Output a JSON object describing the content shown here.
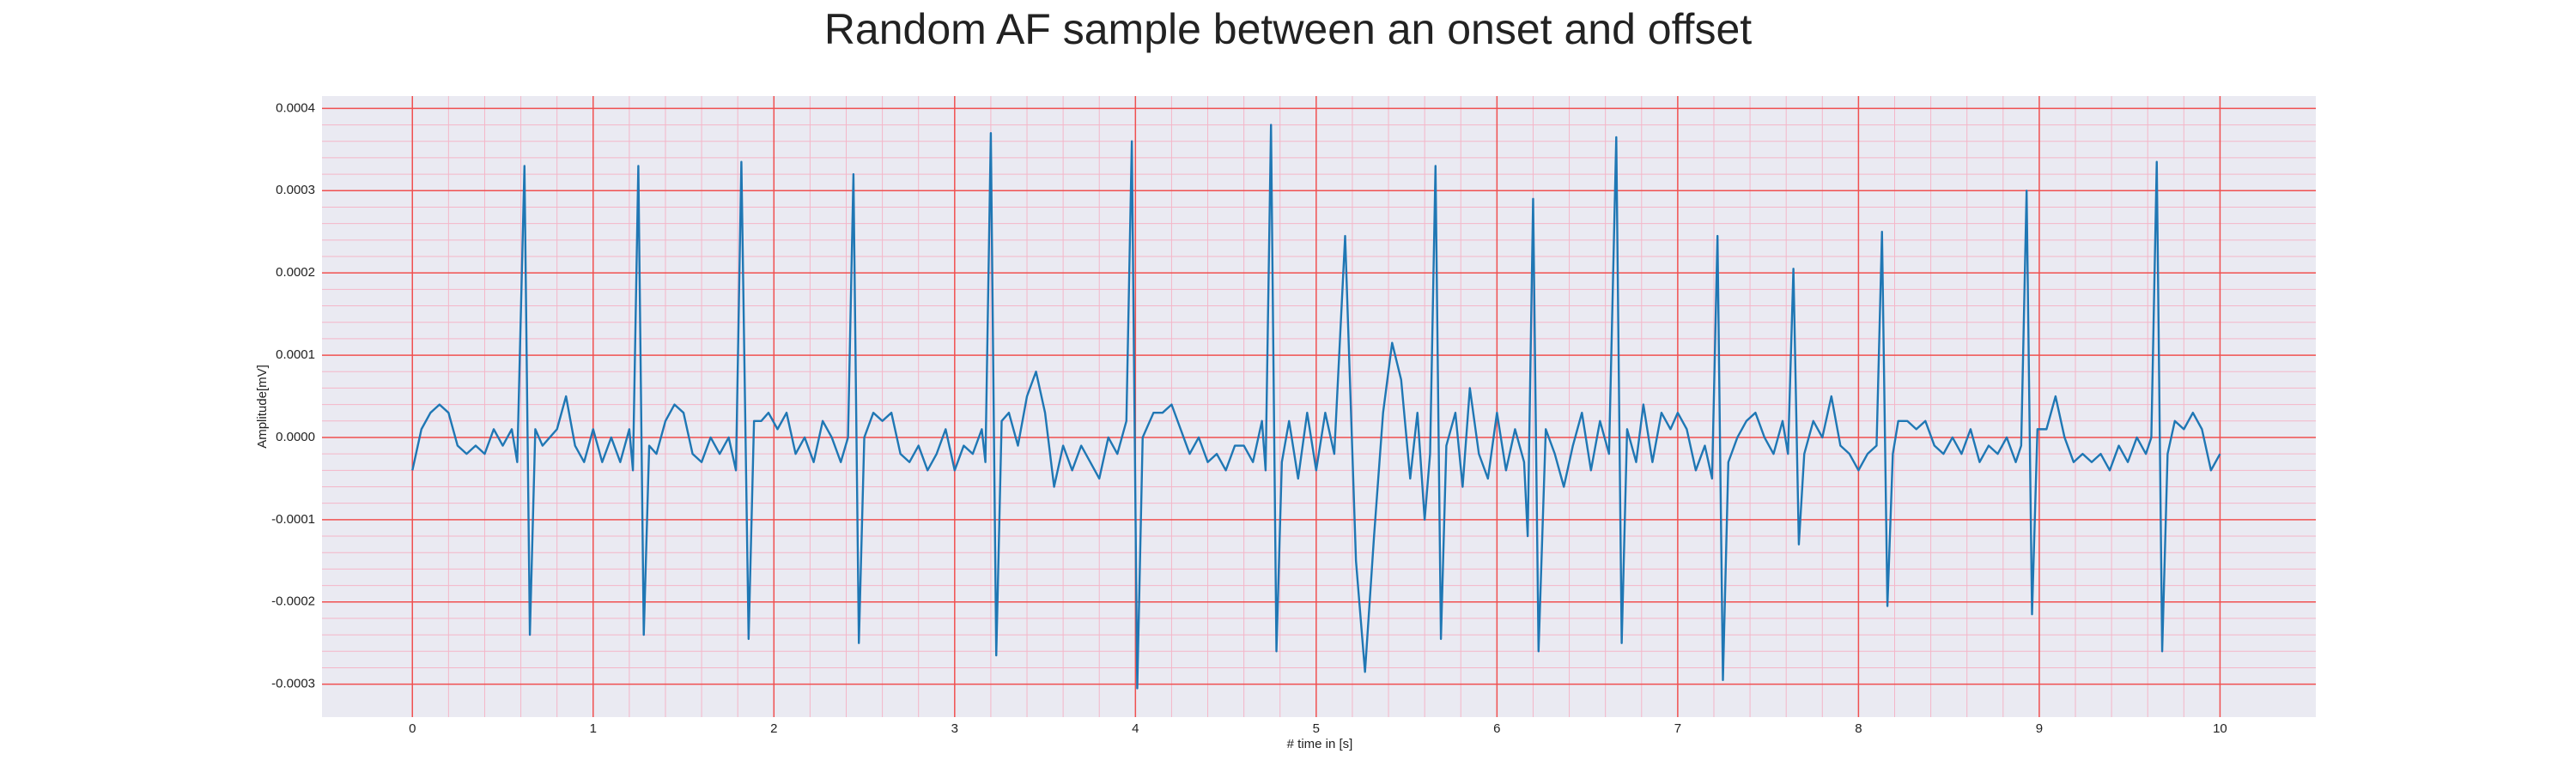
{
  "chart_data": {
    "type": "line",
    "title": "Random AF sample between an onset and offset",
    "xlabel": "# time in [s]",
    "ylabel": "Amplitude[mV]",
    "color": "#1f77b4",
    "grid": true,
    "xlim": [
      -0.5,
      10.53
    ],
    "ylim": [
      -0.00034,
      0.000415
    ],
    "xticks": [
      0,
      1,
      2,
      3,
      4,
      5,
      6,
      7,
      8,
      9,
      10
    ],
    "yticks": [
      -0.0003,
      -0.0002,
      -0.0001,
      {
        "value": 0,
        "label": "0.0000"
      },
      0.0001,
      0.0002,
      0.0003,
      0.0004
    ],
    "x": [
      0,
      0.05,
      0.1,
      0.15,
      0.2,
      0.25,
      0.3,
      0.35,
      0.4,
      0.45,
      0.5,
      0.55,
      0.58,
      0.62,
      0.65,
      0.68,
      0.72,
      0.76,
      0.8,
      0.85,
      0.9,
      0.95,
      1.0,
      1.05,
      1.1,
      1.15,
      1.2,
      1.22,
      1.25,
      1.28,
      1.31,
      1.35,
      1.4,
      1.45,
      1.5,
      1.55,
      1.6,
      1.65,
      1.7,
      1.75,
      1.79,
      1.82,
      1.86,
      1.89,
      1.93,
      1.97,
      2.02,
      2.07,
      2.12,
      2.17,
      2.22,
      2.27,
      2.32,
      2.37,
      2.41,
      2.44,
      2.47,
      2.5,
      2.55,
      2.6,
      2.65,
      2.7,
      2.75,
      2.8,
      2.85,
      2.9,
      2.95,
      3.0,
      3.05,
      3.1,
      3.15,
      3.17,
      3.2,
      3.23,
      3.26,
      3.3,
      3.35,
      3.4,
      3.45,
      3.5,
      3.55,
      3.6,
      3.65,
      3.7,
      3.75,
      3.8,
      3.85,
      3.9,
      3.95,
      3.98,
      4.01,
      4.04,
      4.1,
      4.15,
      4.2,
      4.25,
      4.3,
      4.35,
      4.4,
      4.45,
      4.5,
      4.55,
      4.6,
      4.65,
      4.7,
      4.72,
      4.75,
      4.78,
      4.81,
      4.85,
      4.9,
      4.95,
      5.0,
      5.05,
      5.1,
      5.16,
      5.22,
      5.27,
      5.32,
      5.37,
      5.42,
      5.47,
      5.52,
      5.56,
      5.6,
      5.63,
      5.66,
      5.69,
      5.72,
      5.77,
      5.81,
      5.85,
      5.9,
      5.95,
      6.0,
      6.05,
      6.1,
      6.15,
      6.17,
      6.2,
      6.23,
      6.27,
      6.32,
      6.37,
      6.42,
      6.47,
      6.52,
      6.57,
      6.62,
      6.66,
      6.69,
      6.72,
      6.77,
      6.81,
      6.86,
      6.91,
      6.96,
      7.0,
      7.05,
      7.1,
      7.15,
      7.19,
      7.22,
      7.25,
      7.28,
      7.33,
      7.38,
      7.43,
      7.48,
      7.53,
      7.58,
      7.61,
      7.64,
      7.67,
      7.7,
      7.75,
      7.8,
      7.85,
      7.9,
      7.95,
      8.0,
      8.05,
      8.1,
      8.13,
      8.16,
      8.19,
      8.22,
      8.27,
      8.32,
      8.37,
      8.42,
      8.47,
      8.52,
      8.57,
      8.62,
      8.67,
      8.72,
      8.77,
      8.82,
      8.87,
      8.9,
      8.93,
      8.96,
      8.99,
      9.04,
      9.09,
      9.14,
      9.19,
      9.24,
      9.29,
      9.34,
      9.39,
      9.44,
      9.49,
      9.54,
      9.59,
      9.62,
      9.65,
      9.68,
      9.71,
      9.75,
      9.8,
      9.85,
      9.9,
      9.95,
      10.0
    ],
    "values": [
      -4e-05,
      1e-05,
      3e-05,
      4e-05,
      3e-05,
      -1e-05,
      -2e-05,
      -1e-05,
      -2e-05,
      1e-05,
      -1e-05,
      1e-05,
      -3e-05,
      0.00033,
      -0.00024,
      1e-05,
      -1e-05,
      0,
      1e-05,
      5e-05,
      -1e-05,
      -3e-05,
      1e-05,
      -3e-05,
      0,
      -3e-05,
      1e-05,
      -4e-05,
      0.00033,
      -0.00024,
      -1e-05,
      -2e-05,
      2e-05,
      4e-05,
      3e-05,
      -2e-05,
      -3e-05,
      0,
      -2e-05,
      0,
      -4e-05,
      0.000335,
      -0.000245,
      2e-05,
      2e-05,
      3e-05,
      1e-05,
      3e-05,
      -2e-05,
      0,
      -3e-05,
      2e-05,
      0,
      -3e-05,
      0,
      0.00032,
      -0.00025,
      0,
      3e-05,
      2e-05,
      3e-05,
      -2e-05,
      -3e-05,
      -1e-05,
      -4e-05,
      -2e-05,
      1e-05,
      -4e-05,
      -1e-05,
      -2e-05,
      1e-05,
      -3e-05,
      0.00037,
      -0.000265,
      2e-05,
      3e-05,
      -1e-05,
      5e-05,
      8e-05,
      3e-05,
      -6e-05,
      -1e-05,
      -4e-05,
      -1e-05,
      -3e-05,
      -5e-05,
      0,
      -2e-05,
      2e-05,
      0.00036,
      -0.000305,
      0,
      3e-05,
      3e-05,
      4e-05,
      1e-05,
      -2e-05,
      0,
      -3e-05,
      -2e-05,
      -4e-05,
      -1e-05,
      -1e-05,
      -3e-05,
      2e-05,
      -4e-05,
      0.00038,
      -0.00026,
      -3e-05,
      2e-05,
      -5e-05,
      3e-05,
      -4e-05,
      3e-05,
      -2e-05,
      0.000245,
      -0.00015,
      -0.000285,
      -0.00012,
      3e-05,
      0.000115,
      7e-05,
      -5e-05,
      3e-05,
      -0.0001,
      -2e-05,
      0.00033,
      -0.000245,
      -1e-05,
      3e-05,
      -6e-05,
      6e-05,
      -2e-05,
      -5e-05,
      3e-05,
      -4e-05,
      1e-05,
      -3e-05,
      -0.00012,
      0.00029,
      -0.00026,
      1e-05,
      -2e-05,
      -6e-05,
      -1e-05,
      3e-05,
      -4e-05,
      2e-05,
      -2e-05,
      0.000365,
      -0.00025,
      1e-05,
      -3e-05,
      4e-05,
      -3e-05,
      3e-05,
      1e-05,
      3e-05,
      1e-05,
      -4e-05,
      -1e-05,
      -5e-05,
      0.000245,
      -0.000295,
      -3e-05,
      0,
      2e-05,
      3e-05,
      0,
      -2e-05,
      2e-05,
      -2e-05,
      0.000205,
      -0.00013,
      -2e-05,
      2e-05,
      0,
      5e-05,
      -1e-05,
      -2e-05,
      -4e-05,
      -2e-05,
      -1e-05,
      0.00025,
      -0.000205,
      -2e-05,
      2e-05,
      2e-05,
      1e-05,
      2e-05,
      -1e-05,
      -2e-05,
      0,
      -2e-05,
      1e-05,
      -3e-05,
      -1e-05,
      -2e-05,
      0,
      -3e-05,
      -1e-05,
      0.0003,
      -0.000215,
      1e-05,
      1e-05,
      5e-05,
      0,
      -3e-05,
      -2e-05,
      -3e-05,
      -2e-05,
      -4e-05,
      -1e-05,
      -3e-05,
      0,
      -2e-05,
      0,
      0.000335,
      -0.00026,
      -2e-05,
      2e-05,
      1e-05,
      3e-05,
      1e-05,
      -4e-05,
      -2e-05
    ]
  }
}
